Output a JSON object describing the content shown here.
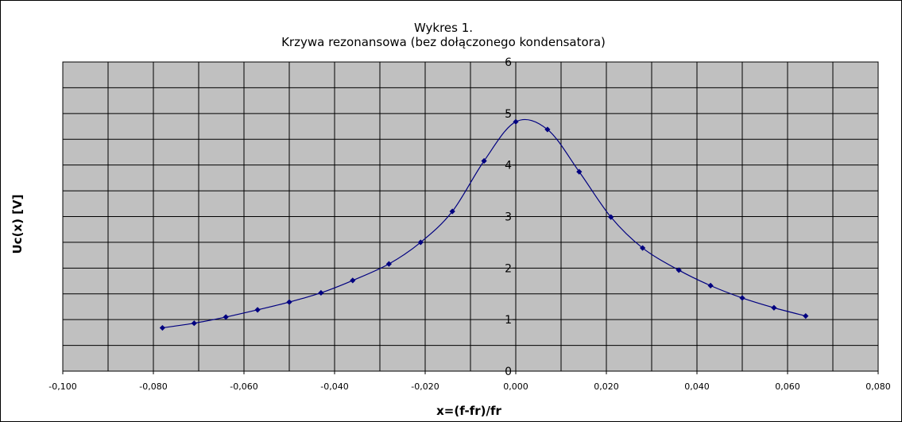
{
  "chart_data": {
    "type": "scatter",
    "title_line1": "Wykres 1.",
    "title_line2": "Krzywa rezonansowa (bez dołączonego kondensatora)",
    "xlabel": "x=(f-fr)/fr",
    "ylabel": "Uc(x) [V]",
    "xlim": [
      -0.1,
      0.08
    ],
    "ylim": [
      0,
      6
    ],
    "xticks": [
      "-0,100",
      "-0,080",
      "-0,060",
      "-0,040",
      "-0,020",
      "0,000",
      "0,020",
      "0,040",
      "0,060",
      "0,080"
    ],
    "xtick_values": [
      -0.1,
      -0.08,
      -0.06,
      -0.04,
      -0.02,
      0,
      0.02,
      0.04,
      0.06,
      0.08
    ],
    "yticks": [
      "0",
      "1",
      "2",
      "3",
      "4",
      "5",
      "6"
    ],
    "ytick_values": [
      0,
      1,
      2,
      3,
      4,
      5,
      6
    ],
    "grid": true,
    "series": [
      {
        "marker": "diamond",
        "smoothed_line": true,
        "color": "#000080",
        "x": [
          -0.078,
          -0.071,
          -0.064,
          -0.057,
          -0.05,
          -0.043,
          -0.036,
          -0.028,
          -0.021,
          -0.014,
          -0.007,
          0.0,
          0.007,
          0.014,
          0.021,
          0.028,
          0.036,
          0.043,
          0.05,
          0.057,
          0.064
        ],
        "y": [
          0.84,
          0.93,
          1.05,
          1.19,
          1.34,
          1.52,
          1.76,
          2.08,
          2.5,
          3.1,
          4.08,
          4.84,
          4.69,
          3.87,
          2.99,
          2.39,
          1.96,
          1.66,
          1.42,
          1.23,
          1.07
        ]
      }
    ],
    "colors": {
      "plot_background": "#c0c0c0",
      "gridline": "#000000",
      "series": "#000080"
    }
  }
}
